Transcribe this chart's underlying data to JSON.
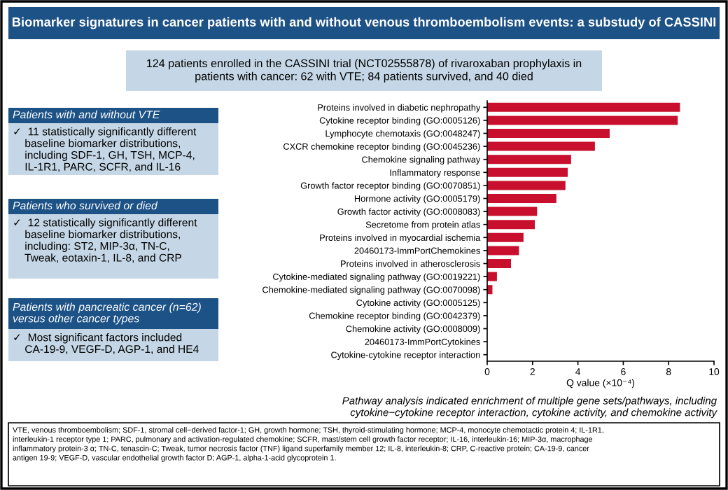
{
  "chart_data": {
    "type": "bar",
    "orientation": "horizontal",
    "title": "Biomarker signatures in cancer patients with and without venous thromboembolism events: a substudy of CASSINI",
    "categories": [
      "Proteins involved in diabetic nephropathy",
      "Cytokine receptor binding (GO:0005126)",
      "Lymphocyte chemotaxis (GO:0048247)",
      "CXCR chemokine receptor binding (GO:0045236)",
      "Chemokine signaling pathway",
      "Inflammatory response",
      "Growth factor receptor binding (GO:0070851)",
      "Hormone activity (GO:0005179)",
      "Growth factor activity (GO:0008083)",
      "Secretome from protein atlas",
      "Proteins involved in myocardial ischemia",
      "20460173-ImmPortChemokines",
      "Proteins involved in atherosclerosis",
      "Cytokine-mediated signaling pathway (GO:0019221)",
      "Chemokine-mediated signaling pathway (GO:0070098)",
      "Cytokine activity (GO:0005125)",
      "Chemokine receptor binding (GO:0042379)",
      "Chemokine activity (GO:0008009)",
      "20460173-ImmPortCytokines",
      "Cytokine-cytokine receptor interaction"
    ],
    "values": [
      8.5,
      8.4,
      5.4,
      4.75,
      3.7,
      3.55,
      3.45,
      3.05,
      2.2,
      2.1,
      1.6,
      1.4,
      1.05,
      0.43,
      0.23,
      0,
      0,
      0,
      0,
      0
    ],
    "color": "#c8102e",
    "xlabel": "Q value (×10⁻⁴)",
    "xlim": [
      0,
      10
    ],
    "xticks": [
      0,
      2,
      4,
      6,
      8,
      10
    ],
    "grid": false,
    "annotations": [
      "124 patients enrolled in the CASSINI trial (NCT02555878) of rivaroxaban prophylaxis in\npatients with cancer: 62 with VTE; 84 patients survived, and 40 died",
      "Patients with and without VTE",
      "✓  11 statistically significantly different\n    baseline biomarker distributions,\n    including SDF-1, GH, TSH, MCP-4,\n    IL-1R1, PARC, SCFR, and IL-16",
      "Patients who survived or died",
      "✓  12 statistically significantly different\n    baseline biomarker distributions,\n    including: ST2, MIP-3α, TN-C,\n    Tweak, eotaxin-1, IL-8, and CRP",
      "Patients with pancreatic cancer (n=62)\nversus other cancer types",
      "✓  Most significant factors included\n    CA-19-9, VEGF-D, AGP-1, and HE4",
      "Pathway analysis indicated enrichment of multiple gene sets/pathways, including\ncytokine−cytokine receptor interaction, cytokine activity, and chemokine activity",
      "VTE, venous thromboembolism; SDF-1, stromal cell−derived factor-1; GH, growth hormone; TSH, thyroid-stimulating hormone; MCP-4, monocyte chemotactic protein 4; IL-1R1,\ninterleukin-1 receptor type 1; PARC, pulmonary and activation-regulated chemokine; SCFR, mast/stem cell growth factor receptor; IL-16, interleukin-16; MIP-3α, macrophage\ninflammatory protein-3 α; TN-C, tenascin-C; Tweak, tumor necrosis factor (TNF) ligand superfamily member 12; IL-8, interleukin-8; CRP, C-reactive protein; CA-19-9, cancer\nantigen 19-9; VEGF-D, vascular endothelial growth factor D; AGP-1, alpha-1-acid glycoprotein 1."
    ]
  }
}
